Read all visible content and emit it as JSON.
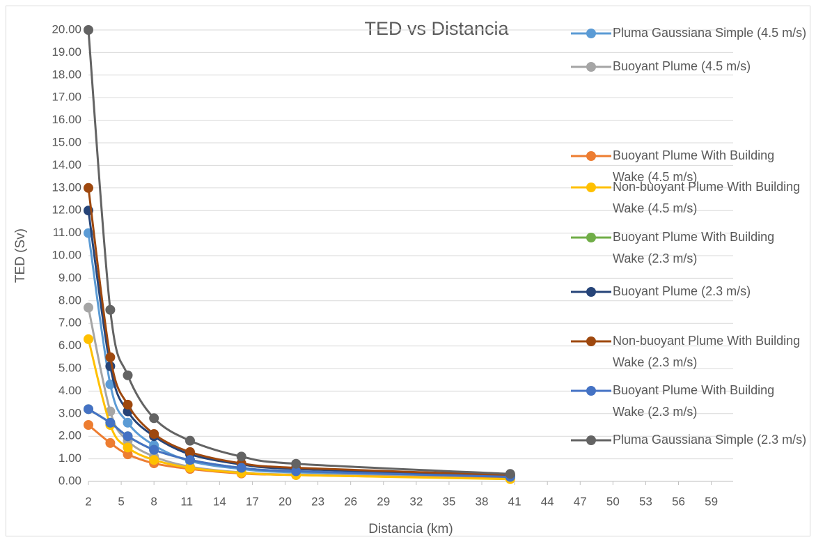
{
  "chart_data": {
    "type": "line",
    "title": "TED vs Distancia",
    "xlabel": "Distancia (km)",
    "ylabel": "TED (Sv)",
    "x": [
      2,
      4,
      5.6,
      8,
      11.3,
      16,
      21,
      40.6
    ],
    "series": [
      {
        "name": "Pluma Gaussiana Simple (4.5 m/s)",
        "color": "#5b9bd5",
        "values": [
          11.0,
          4.3,
          2.6,
          1.6,
          0.9,
          0.55,
          0.4,
          0.2
        ]
      },
      {
        "name": "Buoyant Plume (4.5 m/s)",
        "color": "#a5a5a5",
        "values": [
          7.7,
          3.1,
          1.8,
          1.1,
          0.65,
          0.4,
          0.3,
          0.15
        ]
      },
      {
        "name": "Buoyant Plume With Building Wake (4.5 m/s)",
        "color": "#ed7d31",
        "values": [
          2.5,
          1.7,
          1.2,
          0.8,
          0.55,
          0.35,
          0.28,
          0.12
        ]
      },
      {
        "name": "Non-buoyant Plume With Building Wake (4.5 m/s)",
        "color": "#ffc000",
        "values": [
          6.3,
          2.5,
          1.5,
          0.95,
          0.6,
          0.38,
          0.28,
          0.1
        ]
      },
      {
        "name": "Buoyant Plume With Building Wake (2.3 m/s)",
        "color": "#70ad47",
        "values": [
          3.2,
          2.6,
          2.0,
          1.4,
          0.95,
          0.6,
          0.45,
          0.2
        ]
      },
      {
        "name": "Buoyant Plume (2.3 m/s)",
        "color": "#264478",
        "values": [
          12.0,
          5.1,
          3.1,
          2.0,
          1.2,
          0.75,
          0.55,
          0.25
        ]
      },
      {
        "name": "Non-buoyant Plume With Building Wake (2.3 m/s)",
        "color": "#9e480e",
        "values": [
          13.0,
          5.5,
          3.4,
          2.1,
          1.3,
          0.8,
          0.6,
          0.28
        ]
      },
      {
        "name": "Buoyant Plume With Building Wake (2.3 m/s)",
        "color": "#4472c4",
        "values": [
          3.2,
          2.6,
          2.0,
          1.4,
          0.95,
          0.6,
          0.45,
          0.2
        ]
      },
      {
        "name": "Pluma Gaussiana Simple (2.3 m/s)",
        "color": "#636363",
        "values": [
          20.0,
          7.6,
          4.7,
          2.8,
          1.8,
          1.1,
          0.78,
          0.33
        ]
      }
    ],
    "xlim": [
      2,
      61
    ],
    "xticks": [
      2,
      5,
      8,
      11,
      14,
      17,
      20,
      23,
      26,
      29,
      32,
      35,
      38,
      41,
      44,
      47,
      50,
      53,
      56,
      59
    ],
    "ylim": [
      0,
      20
    ],
    "yticks": [
      {
        "value": 0,
        "label": "0.00"
      },
      {
        "value": 1,
        "label": "1.00"
      },
      {
        "value": 2,
        "label": "2.00"
      },
      {
        "value": 3,
        "label": "3.00"
      },
      {
        "value": 4,
        "label": "4.00"
      },
      {
        "value": 5,
        "label": "5.00"
      },
      {
        "value": 6,
        "label": "6.00"
      },
      {
        "value": 7,
        "label": "7.00"
      },
      {
        "value": 8,
        "label": "8.00"
      },
      {
        "value": 9,
        "label": "9.00"
      },
      {
        "value": 10,
        "label": "10.00"
      },
      {
        "value": 11,
        "label": "11.00"
      },
      {
        "value": 12,
        "label": "12.00"
      },
      {
        "value": 13,
        "label": "13.00"
      },
      {
        "value": 14,
        "label": "14.00"
      },
      {
        "value": 15,
        "label": "15.00"
      },
      {
        "value": 16,
        "label": "16.00"
      },
      {
        "value": 17,
        "label": "17.00"
      },
      {
        "value": 18,
        "label": "18.00"
      },
      {
        "value": 19,
        "label": "19.00"
      },
      {
        "value": 20,
        "label": "20.00"
      }
    ],
    "grid": true,
    "legend": "right"
  }
}
